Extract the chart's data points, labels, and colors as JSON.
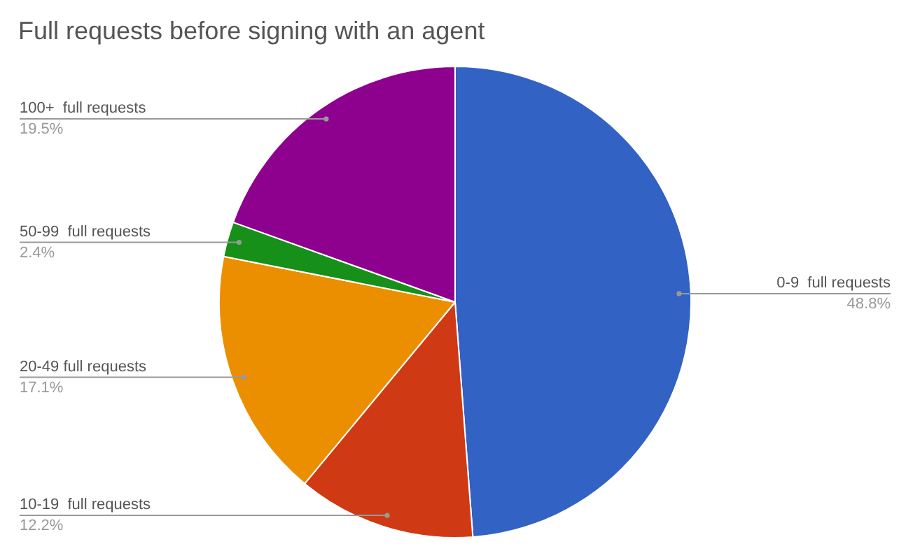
{
  "chart_data": {
    "type": "pie",
    "title": "Full requests before signing with an agent",
    "categories": [
      "0-9  full requests",
      "10-19  full requests",
      "20-49 full requests",
      "50-99  full requests",
      "100+  full requests"
    ],
    "values": [
      48.8,
      12.2,
      17.1,
      2.4,
      19.5
    ],
    "value_labels": [
      "48.8%",
      "12.2%",
      "17.1%",
      "2.4%",
      "19.5%"
    ],
    "colors": [
      "#3162c4",
      "#cf3a14",
      "#eb8f00",
      "#17901a",
      "#8e008e"
    ]
  }
}
